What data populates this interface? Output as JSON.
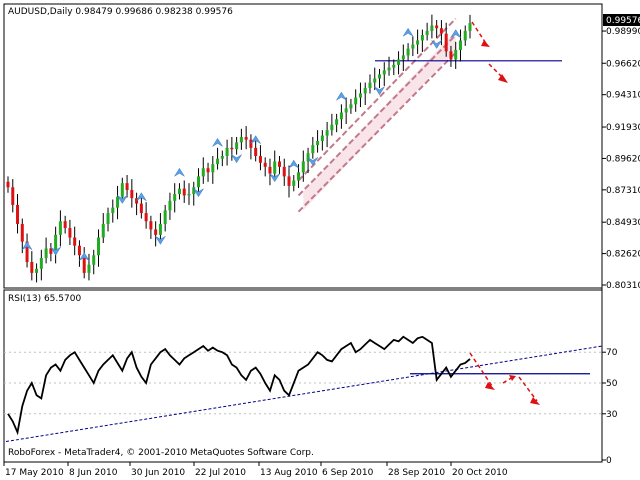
{
  "chart_data": [
    {
      "type": "candlestick",
      "title": "AUDUSD,Daily  0.98479 0.99686 0.98238 0.99576",
      "current_price_label": "0.99576",
      "y_ticks": [
        "0.98990",
        "0.96620",
        "0.94310",
        "0.91930",
        "0.89620",
        "0.87310",
        "0.84930",
        "0.82620",
        "0.80310"
      ],
      "ylim": [
        0.8031,
        0.9995
      ],
      "support_level": 0.968,
      "closes": [
        0.875,
        0.862,
        0.848,
        0.835,
        0.82,
        0.812,
        0.815,
        0.823,
        0.83,
        0.826,
        0.84,
        0.85,
        0.845,
        0.838,
        0.832,
        0.825,
        0.812,
        0.818,
        0.825,
        0.838,
        0.848,
        0.856,
        0.86,
        0.868,
        0.878,
        0.873,
        0.867,
        0.863,
        0.856,
        0.85,
        0.844,
        0.84,
        0.848,
        0.858,
        0.865,
        0.87,
        0.874,
        0.869,
        0.87,
        0.875,
        0.883,
        0.889,
        0.886,
        0.892,
        0.896,
        0.898,
        0.904,
        0.903,
        0.908,
        0.912,
        0.91,
        0.904,
        0.898,
        0.893,
        0.89,
        0.885,
        0.894,
        0.89,
        0.883,
        0.876,
        0.88,
        0.886,
        0.894,
        0.9,
        0.906,
        0.909,
        0.913,
        0.917,
        0.921,
        0.925,
        0.93,
        0.933,
        0.936,
        0.941,
        0.944,
        0.948,
        0.952,
        0.955,
        0.958,
        0.961,
        0.963,
        0.965,
        0.969,
        0.972,
        0.977,
        0.98,
        0.983,
        0.987,
        0.99,
        0.994,
        0.992,
        0.988,
        0.975,
        0.969,
        0.976,
        0.983,
        0.99,
        0.99576
      ]
    },
    {
      "type": "line",
      "title": "RSI(13) 65.5700",
      "y_ticks": [
        "70",
        "50",
        "30",
        "0"
      ],
      "ylim": [
        0,
        100
      ],
      "levels": [
        70,
        50,
        30
      ],
      "values": [
        30,
        25,
        18,
        35,
        45,
        50,
        42,
        40,
        55,
        60,
        62,
        58,
        65,
        68,
        70,
        65,
        60,
        55,
        50,
        58,
        62,
        65,
        68,
        63,
        58,
        66,
        70,
        60,
        54,
        50,
        62,
        66,
        70,
        72,
        68,
        65,
        62,
        66,
        68,
        70,
        72,
        74,
        71,
        73,
        71,
        70,
        68,
        62,
        60,
        55,
        52,
        58,
        60,
        56,
        50,
        45,
        55,
        52,
        45,
        42,
        50,
        58,
        60,
        62,
        66,
        70,
        68,
        65,
        64,
        68,
        72,
        74,
        76,
        70,
        72,
        75,
        78,
        76,
        74,
        72,
        75,
        78,
        77,
        80,
        78,
        76,
        79,
        80,
        78,
        76,
        52,
        56,
        60,
        54,
        58,
        62,
        63,
        65.57
      ],
      "x_labels": [
        "17 May 2010",
        "8 Jun 2010",
        "30 Jun 2010",
        "22 Jul 2010",
        "13 Aug 2010",
        "6 Sep 2010",
        "28 Sep 2010",
        "20 Oct 2010"
      ],
      "footer": "RoboForex - MetaTrader4, © 2001-2010 MetaQuotes Software Corp."
    }
  ]
}
